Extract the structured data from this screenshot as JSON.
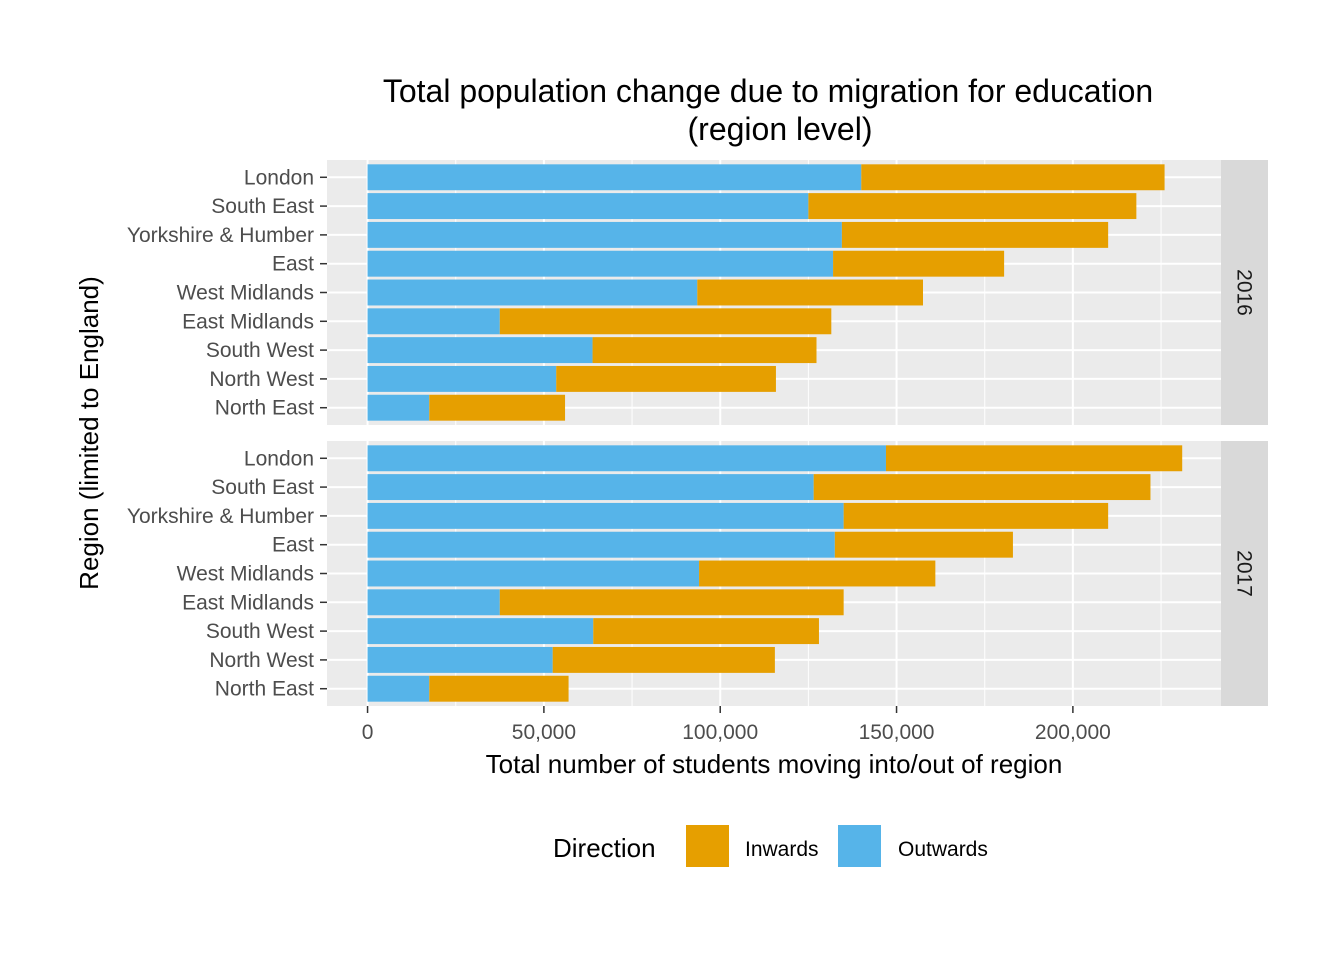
{
  "chart_data": {
    "type": "bar",
    "orientation": "horizontal",
    "stacked": true,
    "title_line1": "Total population change due to migration for education",
    "title_line2": "(region level)",
    "xlabel": "Total number of students moving into/out of region",
    "ylabel": "Region (limited to England)",
    "xlim": [
      -11500,
      242000
    ],
    "x_ticks": [
      0,
      50000,
      100000,
      150000,
      200000
    ],
    "x_tick_labels": [
      "0",
      "50,000",
      "100,000",
      "150,000",
      "200,000"
    ],
    "grid": true,
    "legend_position": "bottom",
    "legend": {
      "title": "Direction",
      "entries": [
        {
          "label": "Inwards",
          "color": "#E69F00"
        },
        {
          "label": "Outwards",
          "color": "#56B4E9"
        }
      ]
    },
    "categories": [
      "London",
      "South East",
      "Yorkshire & Humber",
      "East",
      "West Midlands",
      "East Midlands",
      "South West",
      "North West",
      "North East"
    ],
    "panels": [
      {
        "label": "2016",
        "series": [
          {
            "name": "Outwards",
            "values": [
              140000,
              125000,
              134500,
              132000,
              93500,
              37500,
              63800,
              53500,
              17500
            ]
          },
          {
            "name": "Inwards",
            "values": [
              86000,
              93000,
              75500,
              48500,
              64000,
              94000,
              63500,
              62300,
              38500
            ]
          }
        ]
      },
      {
        "label": "2017",
        "series": [
          {
            "name": "Outwards",
            "values": [
              147000,
              126500,
              135000,
              132500,
              94000,
              37500,
              64000,
              52500,
              17500
            ]
          },
          {
            "name": "Inwards",
            "values": [
              84000,
              95500,
              75000,
              50500,
              67000,
              97500,
              64000,
              63000,
              39500
            ]
          }
        ]
      }
    ]
  }
}
